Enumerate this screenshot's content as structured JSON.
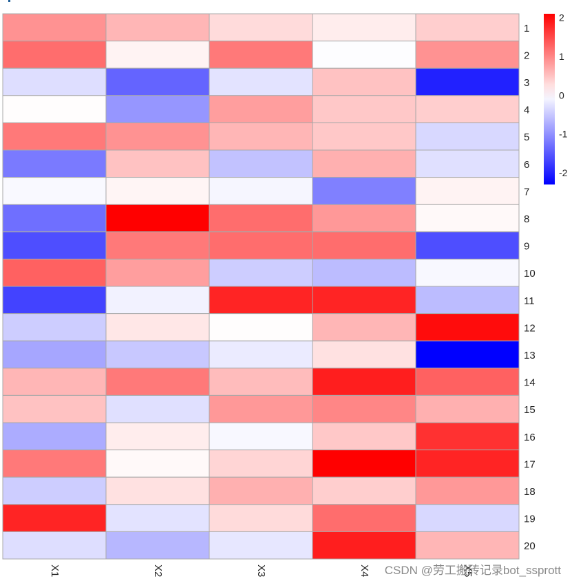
{
  "chart_data": {
    "type": "heatmap",
    "columns": [
      "X1",
      "X2",
      "X3",
      "X4",
      "X5"
    ],
    "rows": [
      "1",
      "2",
      "3",
      "4",
      "5",
      "6",
      "7",
      "8",
      "9",
      "10",
      "11",
      "12",
      "13",
      "14",
      "15",
      "16",
      "17",
      "18",
      "19",
      "20"
    ],
    "values": [
      [
        0.9,
        0.6,
        0.3,
        0.15,
        0.4
      ],
      [
        1.2,
        0.1,
        1.1,
        -0.02,
        0.9
      ],
      [
        -0.3,
        -1.4,
        -0.25,
        0.5,
        -2.0
      ],
      [
        0.02,
        -0.95,
        0.8,
        0.45,
        0.4
      ],
      [
        1.1,
        0.9,
        0.6,
        0.45,
        -0.35
      ],
      [
        -1.2,
        0.5,
        -0.55,
        0.65,
        -0.28
      ],
      [
        -0.05,
        0.08,
        -0.08,
        -1.15,
        0.1
      ],
      [
        -1.3,
        2.1,
        1.2,
        0.85,
        0.05
      ],
      [
        -1.6,
        1.1,
        1.2,
        1.2,
        -1.6
      ],
      [
        1.3,
        0.8,
        -0.45,
        -0.6,
        -0.06
      ],
      [
        -1.7,
        -0.12,
        1.8,
        1.8,
        -0.6
      ],
      [
        -0.45,
        0.2,
        0.02,
        0.6,
        2.0
      ],
      [
        -0.8,
        -0.5,
        -0.18,
        0.25,
        -2.3
      ],
      [
        0.6,
        1.1,
        0.55,
        1.85,
        1.3
      ],
      [
        0.5,
        -0.28,
        0.85,
        1.0,
        0.65
      ],
      [
        -0.75,
        0.15,
        -0.06,
        0.45,
        1.7
      ],
      [
        1.1,
        0.05,
        0.35,
        2.1,
        1.8
      ],
      [
        -0.45,
        0.25,
        0.65,
        0.4,
        0.85
      ],
      [
        1.8,
        -0.25,
        0.3,
        1.2,
        -0.35
      ],
      [
        -0.3,
        -0.65,
        -0.22,
        1.85,
        0.6
      ]
    ],
    "legend": {
      "ticks": [
        2,
        1,
        0,
        -1,
        -2
      ],
      "tick_labels": [
        "2",
        "1",
        "0",
        "-1",
        "-2"
      ],
      "range": [
        -2.3,
        2.1
      ],
      "colors": {
        "low": "#0000ff",
        "mid": "#ffffff",
        "high": "#ff0000"
      },
      "placement": "top-right"
    },
    "grid_color": "#a8a8a8"
  },
  "watermark": "CSDN @劳工搬砖记录bot_ssprott"
}
